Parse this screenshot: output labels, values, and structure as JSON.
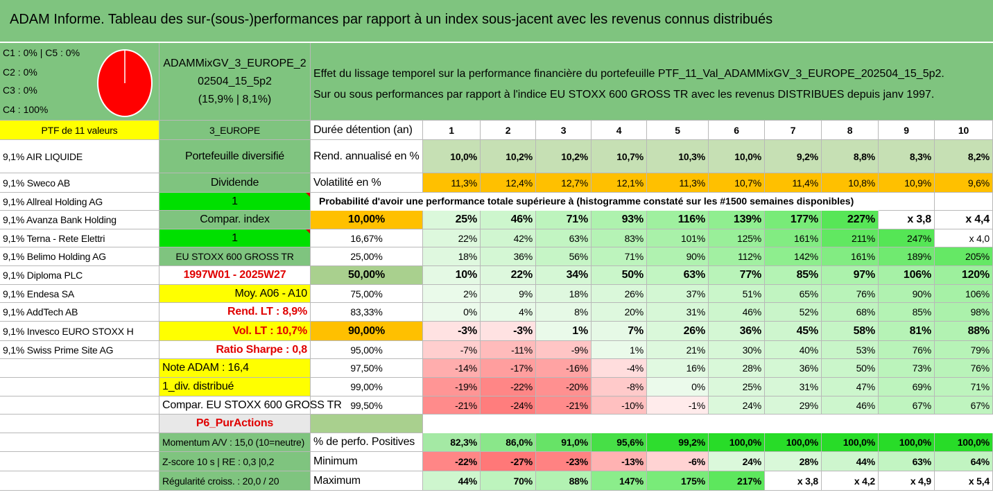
{
  "title": "ADAM Informe. Tableau des sur-(sous-)performances par rapport à un index sous-jacent avec les revenus connus distribués",
  "allocation": {
    "lines": [
      "C1 : 0% | C5 : 0%",
      "C2 : 0%",
      "C3 : 0%",
      "C4 : 100%"
    ],
    "pie_color": "#ff0000"
  },
  "portfolio": {
    "name_lines": [
      "ADAMMixGV_3_EUROPE_2",
      "02504_15_5p2",
      "(15,9% | 8,1%)"
    ]
  },
  "description": {
    "line1": "Effet du lissage temporel sur la performance financière du portefeuille PTF_11_Val_ADAMMixGV_3_EUROPE_202504_15_5p2.",
    "line2": "Sur ou sous performances par rapport à l'indice EU STOXX 600 GROSS TR avec les revenus DISTRIBUES depuis janv 1997."
  },
  "holdings_header": "PTF de 11 valeurs",
  "holdings": [
    "9,1% AIR LIQUIDE",
    "9,1% Sweco AB",
    "9,1% Allreal Holding AG",
    "9,1% Avanza Bank Holding",
    "9,1% Terna - Rete Elettri",
    "9,1% Belimo Holding AG",
    "9,1% Diploma PLC",
    "9,1% Endesa SA",
    "9,1% AddTech AB",
    "9,1% Invesco EURO STOXX H",
    "9,1% Swiss Prime Site AG"
  ],
  "info": {
    "zone": "3_EUROPE",
    "type": "Portefeuille diversifié",
    "dividend_label": "Dividende",
    "dividend_value": "1",
    "compar_label": "Compar. index",
    "compar_value": "1",
    "index_name": "EU STOXX 600 GROSS TR",
    "period": "1997W01 - 2025W27",
    "moy": "Moy. A06 - A10",
    "rend_lt": "Rend. LT : 8,9%",
    "vol_lt": "Vol. LT : 10,7%",
    "sharpe": "Ratio Sharpe : 0,8",
    "note": "Note ADAM : 16,4",
    "div_distrib": "1_div. distribué",
    "compar_full": "Compar. EU STOXX 600 GROSS TR",
    "p6": "P6_PurActions",
    "momentum": "Momentum A/V : 15,0 (10=neutre)",
    "zscore": "Z-score 10 s | RE : 0,3 |0,2",
    "regularite": "Régularité croiss. : 20,0 / 20"
  },
  "grid": {
    "duration_label": "Durée détention (an)",
    "years": [
      "1",
      "2",
      "3",
      "4",
      "5",
      "6",
      "7",
      "8",
      "9",
      "10"
    ],
    "rend_label": "Rend. annualisé en %",
    "rend": [
      "10,0%",
      "10,2%",
      "10,2%",
      "10,7%",
      "10,3%",
      "10,0%",
      "9,2%",
      "8,8%",
      "8,3%",
      "8,2%"
    ],
    "vol_label": "Volatilité en %",
    "vol": [
      "11,3%",
      "12,4%",
      "12,7%",
      "12,1%",
      "11,3%",
      "10,7%",
      "11,4%",
      "10,8%",
      "10,9%",
      "9,6%"
    ],
    "prob_header": "Probabilité d'avoir une performance totale supérieure à (histogramme constaté sur les #1500 semaines disponibles)",
    "prob_rows": [
      {
        "p": "10,00%",
        "v": [
          "25%",
          "46%",
          "71%",
          "93%",
          "116%",
          "139%",
          "177%",
          "227%",
          "x 3,8",
          "x 4,4"
        ]
      },
      {
        "p": "16,67%",
        "v": [
          "22%",
          "42%",
          "63%",
          "83%",
          "101%",
          "125%",
          "161%",
          "211%",
          "247%",
          "x 4,0"
        ]
      },
      {
        "p": "25,00%",
        "v": [
          "18%",
          "36%",
          "56%",
          "71%",
          "90%",
          "112%",
          "142%",
          "161%",
          "189%",
          "205%"
        ]
      },
      {
        "p": "50,00%",
        "v": [
          "10%",
          "22%",
          "34%",
          "50%",
          "63%",
          "77%",
          "85%",
          "97%",
          "106%",
          "120%"
        ]
      },
      {
        "p": "75,00%",
        "v": [
          "2%",
          "9%",
          "18%",
          "26%",
          "37%",
          "51%",
          "65%",
          "76%",
          "90%",
          "106%"
        ]
      },
      {
        "p": "83,33%",
        "v": [
          "0%",
          "4%",
          "8%",
          "20%",
          "31%",
          "46%",
          "52%",
          "68%",
          "85%",
          "98%"
        ]
      },
      {
        "p": "90,00%",
        "v": [
          "-3%",
          "-3%",
          "1%",
          "7%",
          "26%",
          "36%",
          "45%",
          "58%",
          "81%",
          "88%"
        ]
      },
      {
        "p": "95,00%",
        "v": [
          "-7%",
          "-11%",
          "-9%",
          "1%",
          "21%",
          "30%",
          "40%",
          "53%",
          "76%",
          "79%"
        ]
      },
      {
        "p": "97,50%",
        "v": [
          "-14%",
          "-17%",
          "-16%",
          "-4%",
          "16%",
          "28%",
          "36%",
          "50%",
          "73%",
          "76%"
        ]
      },
      {
        "p": "99,00%",
        "v": [
          "-19%",
          "-22%",
          "-20%",
          "-8%",
          "0%",
          "25%",
          "31%",
          "47%",
          "69%",
          "71%"
        ]
      },
      {
        "p": "99,50%",
        "v": [
          "-21%",
          "-24%",
          "-21%",
          "-10%",
          "-1%",
          "24%",
          "29%",
          "46%",
          "67%",
          "67%"
        ]
      }
    ],
    "pos_label": "% de perfo. Positives",
    "pos": [
      "82,3%",
      "86,0%",
      "91,0%",
      "95,6%",
      "99,2%",
      "100,0%",
      "100,0%",
      "100,0%",
      "100,0%",
      "100,0%"
    ],
    "min_label": "Minimum",
    "min": [
      "-22%",
      "-27%",
      "-23%",
      "-13%",
      "-6%",
      "24%",
      "28%",
      "44%",
      "63%",
      "64%"
    ],
    "max_label": "Maximum",
    "max": [
      "44%",
      "70%",
      "88%",
      "147%",
      "175%",
      "217%",
      "x 3,8",
      "x 4,2",
      "x 4,9",
      "x 5,4"
    ]
  }
}
